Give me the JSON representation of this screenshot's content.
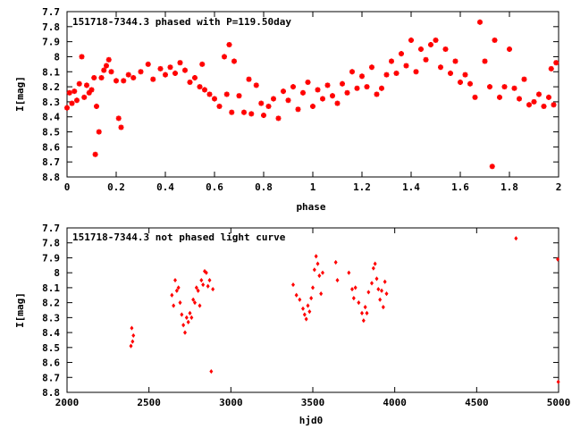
{
  "chart_data": [
    {
      "type": "scatter",
      "title": "151718-7344.3 phased with P=119.50day",
      "xlabel": "phase",
      "ylabel": "I[mag]",
      "xlim": [
        0,
        2
      ],
      "ylim": [
        7.7,
        8.8
      ],
      "y_inverted": true,
      "x_ticks": [
        "0",
        "0.2",
        "0.4",
        "0.6",
        "0.8",
        "1",
        "1.2",
        "1.4",
        "1.6",
        "1.8",
        "2"
      ],
      "y_ticks": [
        "7.7",
        "7.8",
        "7.9",
        "8",
        "8.1",
        "8.2",
        "8.3",
        "8.4",
        "8.5",
        "8.6",
        "8.7",
        "8.8"
      ],
      "grid": false,
      "marker": "star",
      "color": "#ff0000",
      "points": [
        [
          0.0,
          8.34
        ],
        [
          0.01,
          8.24
        ],
        [
          0.02,
          8.31
        ],
        [
          0.03,
          8.23
        ],
        [
          0.04,
          8.29
        ],
        [
          0.05,
          8.18
        ],
        [
          0.06,
          8.0
        ],
        [
          0.07,
          8.27
        ],
        [
          0.08,
          8.19
        ],
        [
          0.09,
          8.24
        ],
        [
          0.1,
          8.22
        ],
        [
          0.11,
          8.14
        ],
        [
          0.115,
          8.65
        ],
        [
          0.12,
          8.33
        ],
        [
          0.13,
          8.5
        ],
        [
          0.14,
          8.14
        ],
        [
          0.15,
          8.09
        ],
        [
          0.16,
          8.06
        ],
        [
          0.17,
          8.02
        ],
        [
          0.18,
          8.1
        ],
        [
          0.2,
          8.16
        ],
        [
          0.21,
          8.41
        ],
        [
          0.22,
          8.47
        ],
        [
          0.23,
          8.16
        ],
        [
          0.25,
          8.12
        ],
        [
          0.27,
          8.14
        ],
        [
          0.3,
          8.1
        ],
        [
          0.33,
          8.05
        ],
        [
          0.35,
          8.15
        ],
        [
          0.38,
          8.08
        ],
        [
          0.4,
          8.12
        ],
        [
          0.42,
          8.07
        ],
        [
          0.44,
          8.11
        ],
        [
          0.46,
          8.04
        ],
        [
          0.48,
          8.09
        ],
        [
          0.5,
          8.17
        ],
        [
          0.52,
          8.14
        ],
        [
          0.54,
          8.2
        ],
        [
          0.55,
          8.05
        ],
        [
          0.56,
          8.22
        ],
        [
          0.58,
          8.25
        ],
        [
          0.6,
          8.28
        ],
        [
          0.62,
          8.33
        ],
        [
          0.64,
          8.0
        ],
        [
          0.65,
          8.25
        ],
        [
          0.66,
          7.92
        ],
        [
          0.67,
          8.37
        ],
        [
          0.68,
          8.03
        ],
        [
          0.7,
          8.26
        ],
        [
          0.72,
          8.37
        ],
        [
          0.74,
          8.15
        ],
        [
          0.75,
          8.38
        ],
        [
          0.77,
          8.19
        ],
        [
          0.79,
          8.31
        ],
        [
          0.8,
          8.39
        ],
        [
          0.82,
          8.33
        ],
        [
          0.84,
          8.28
        ],
        [
          0.86,
          8.41
        ],
        [
          0.88,
          8.23
        ],
        [
          0.9,
          8.29
        ],
        [
          0.92,
          8.2
        ],
        [
          0.94,
          8.35
        ],
        [
          0.96,
          8.24
        ],
        [
          0.98,
          8.17
        ],
        [
          1.0,
          8.33
        ],
        [
          1.02,
          8.22
        ],
        [
          1.04,
          8.28
        ],
        [
          1.06,
          8.19
        ],
        [
          1.08,
          8.26
        ],
        [
          1.1,
          8.31
        ],
        [
          1.12,
          8.18
        ],
        [
          1.14,
          8.24
        ],
        [
          1.16,
          8.1
        ],
        [
          1.18,
          8.21
        ],
        [
          1.2,
          8.13
        ],
        [
          1.22,
          8.2
        ],
        [
          1.24,
          8.07
        ],
        [
          1.26,
          8.25
        ],
        [
          1.28,
          8.21
        ],
        [
          1.3,
          8.12
        ],
        [
          1.32,
          8.03
        ],
        [
          1.34,
          8.11
        ],
        [
          1.36,
          7.98
        ],
        [
          1.38,
          8.06
        ],
        [
          1.4,
          7.89
        ],
        [
          1.42,
          8.1
        ],
        [
          1.44,
          7.95
        ],
        [
          1.46,
          8.02
        ],
        [
          1.48,
          7.92
        ],
        [
          1.5,
          7.89
        ],
        [
          1.52,
          8.07
        ],
        [
          1.54,
          7.95
        ],
        [
          1.56,
          8.11
        ],
        [
          1.58,
          8.03
        ],
        [
          1.6,
          8.17
        ],
        [
          1.62,
          8.12
        ],
        [
          1.64,
          8.18
        ],
        [
          1.66,
          8.27
        ],
        [
          1.68,
          7.77
        ],
        [
          1.7,
          8.03
        ],
        [
          1.72,
          8.2
        ],
        [
          1.73,
          8.73
        ],
        [
          1.74,
          7.89
        ],
        [
          1.76,
          8.27
        ],
        [
          1.78,
          8.2
        ],
        [
          1.8,
          7.95
        ],
        [
          1.82,
          8.21
        ],
        [
          1.84,
          8.28
        ],
        [
          1.86,
          8.15
        ],
        [
          1.88,
          8.32
        ],
        [
          1.9,
          8.3
        ],
        [
          1.92,
          8.25
        ],
        [
          1.94,
          8.33
        ],
        [
          1.96,
          8.27
        ],
        [
          1.97,
          8.08
        ],
        [
          1.98,
          8.32
        ],
        [
          1.99,
          8.04
        ]
      ]
    },
    {
      "type": "scatter",
      "title": "151718-7344.3 not phased light curve",
      "xlabel": "hjd0",
      "ylabel": "I[mag]",
      "xlim": [
        2000,
        5000
      ],
      "ylim": [
        7.7,
        8.8
      ],
      "y_inverted": true,
      "x_ticks": [
        "2000",
        "2500",
        "3000",
        "3500",
        "4000",
        "4500",
        "5000"
      ],
      "y_ticks": [
        "7.7",
        "7.8",
        "7.9",
        "8",
        "8.1",
        "8.2",
        "8.3",
        "8.4",
        "8.5",
        "8.6",
        "8.7",
        "8.8"
      ],
      "grid": false,
      "marker": "diamond",
      "color": "#ff0000",
      "points": [
        [
          2390,
          8.49
        ],
        [
          2395,
          8.37
        ],
        [
          2400,
          8.46
        ],
        [
          2405,
          8.42
        ],
        [
          2640,
          8.15
        ],
        [
          2650,
          8.22
        ],
        [
          2660,
          8.05
        ],
        [
          2670,
          8.12
        ],
        [
          2680,
          8.1
        ],
        [
          2690,
          8.2
        ],
        [
          2700,
          8.28
        ],
        [
          2710,
          8.35
        ],
        [
          2720,
          8.4
        ],
        [
          2730,
          8.3
        ],
        [
          2740,
          8.33
        ],
        [
          2750,
          8.27
        ],
        [
          2760,
          8.3
        ],
        [
          2770,
          8.18
        ],
        [
          2780,
          8.2
        ],
        [
          2790,
          8.1
        ],
        [
          2800,
          8.12
        ],
        [
          2810,
          8.22
        ],
        [
          2820,
          8.05
        ],
        [
          2830,
          8.08
        ],
        [
          2840,
          7.99
        ],
        [
          2850,
          8.0
        ],
        [
          2860,
          8.09
        ],
        [
          2870,
          8.05
        ],
        [
          2880,
          8.66
        ],
        [
          2890,
          8.11
        ],
        [
          3380,
          8.08
        ],
        [
          3400,
          8.15
        ],
        [
          3420,
          8.18
        ],
        [
          3440,
          8.24
        ],
        [
          3450,
          8.28
        ],
        [
          3460,
          8.31
        ],
        [
          3470,
          8.22
        ],
        [
          3480,
          8.26
        ],
        [
          3490,
          8.17
        ],
        [
          3500,
          8.1
        ],
        [
          3510,
          7.98
        ],
        [
          3520,
          7.89
        ],
        [
          3530,
          7.94
        ],
        [
          3540,
          8.02
        ],
        [
          3550,
          8.14
        ],
        [
          3560,
          8.0
        ],
        [
          3640,
          7.93
        ],
        [
          3650,
          8.05
        ],
        [
          3720,
          8.0
        ],
        [
          3740,
          8.11
        ],
        [
          3750,
          8.17
        ],
        [
          3760,
          8.1
        ],
        [
          3780,
          8.2
        ],
        [
          3800,
          8.27
        ],
        [
          3810,
          8.32
        ],
        [
          3820,
          8.23
        ],
        [
          3830,
          8.27
        ],
        [
          3840,
          8.13
        ],
        [
          3860,
          8.07
        ],
        [
          3870,
          7.97
        ],
        [
          3880,
          7.94
        ],
        [
          3890,
          8.04
        ],
        [
          3900,
          8.11
        ],
        [
          3910,
          8.18
        ],
        [
          3920,
          8.12
        ],
        [
          3930,
          8.23
        ],
        [
          3940,
          8.06
        ],
        [
          3950,
          8.14
        ],
        [
          4740,
          7.77
        ],
        [
          4995,
          7.91
        ],
        [
          4998,
          8.73
        ]
      ]
    }
  ]
}
